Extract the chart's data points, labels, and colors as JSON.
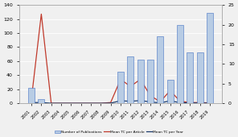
{
  "years": [
    2001,
    2002,
    2003,
    2004,
    2005,
    2006,
    2007,
    2008,
    2009,
    2010,
    2011,
    2012,
    2013,
    2014,
    2015,
    2016,
    2017,
    2018,
    2019
  ],
  "num_publications": [
    4,
    1,
    0,
    0,
    0,
    0,
    0,
    0,
    0,
    8,
    12,
    11,
    11,
    17,
    6,
    20,
    13,
    13,
    23
  ],
  "mean_tc_per_article": [
    6,
    127,
    0,
    0,
    0,
    0,
    0,
    0,
    1,
    34,
    24,
    34,
    11,
    2,
    18,
    3,
    1,
    1,
    0.5
  ],
  "mean_tc_per_year": [
    1.0,
    1.0,
    0,
    0,
    0,
    0,
    0,
    0,
    0.2,
    3.5,
    2.8,
    3.8,
    2.0,
    0.4,
    3.5,
    0.8,
    0.4,
    0.3,
    0.1
  ],
  "bar_color": "#b8cce4",
  "bar_edgecolor": "#4472c4",
  "line1_color": "#c0392b",
  "line2_color": "#1a3a6b",
  "left_ylim": [
    0,
    140
  ],
  "left_yticks": [
    0,
    20,
    40,
    60,
    80,
    100,
    120,
    140
  ],
  "right_ylim": [
    0,
    25
  ],
  "right_yticks": [
    0,
    5,
    10,
    15,
    20,
    25
  ],
  "legend_labels": [
    "Number of Publications",
    "Mean TC per Article",
    "Mean TC per Year"
  ],
  "background_color": "#f0f0f0"
}
